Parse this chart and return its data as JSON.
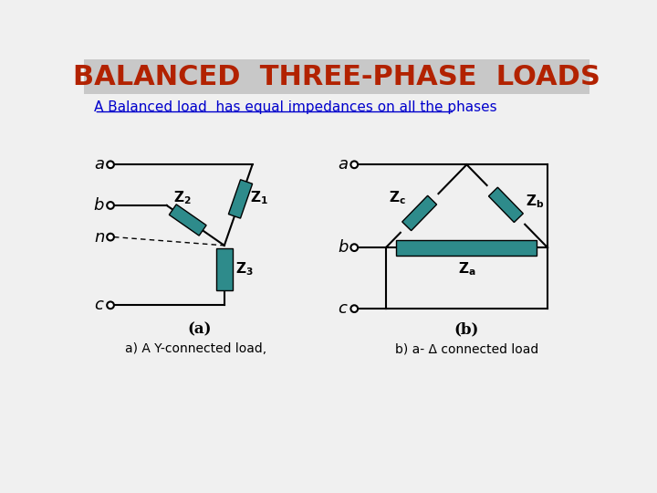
{
  "title": "BALANCED  THREE-PHASE  LOADS",
  "title_color": "#B22200",
  "subtitle": "A Balanced load  has equal impedances on all the phases",
  "subtitle_color": "#0000CC",
  "bg_color": "#F0F0F0",
  "teal_color": "#2E8B8B",
  "caption_a": "(a)",
  "caption_b": "(b)",
  "caption_text_a": "a) A Y-connected load,",
  "caption_text_b": "b) a- Δ connected load"
}
